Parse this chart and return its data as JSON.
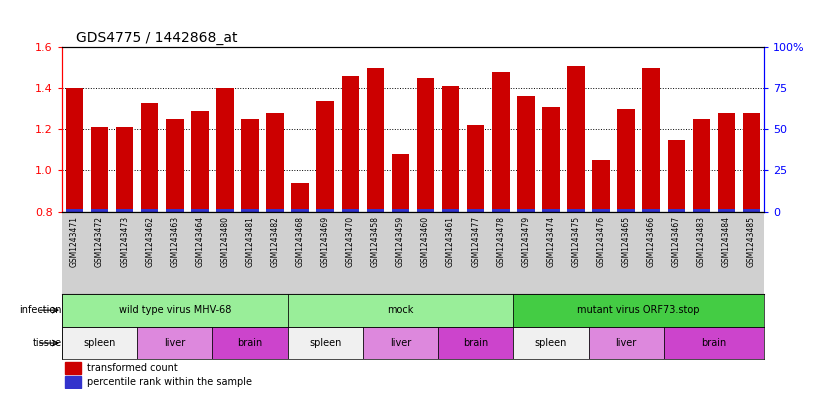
{
  "title": "GDS4775 / 1442868_at",
  "samples": [
    "GSM1243471",
    "GSM1243472",
    "GSM1243473",
    "GSM1243462",
    "GSM1243463",
    "GSM1243464",
    "GSM1243480",
    "GSM1243481",
    "GSM1243482",
    "GSM1243468",
    "GSM1243469",
    "GSM1243470",
    "GSM1243458",
    "GSM1243459",
    "GSM1243460",
    "GSM1243461",
    "GSM1243477",
    "GSM1243478",
    "GSM1243479",
    "GSM1243474",
    "GSM1243475",
    "GSM1243476",
    "GSM1243465",
    "GSM1243466",
    "GSM1243467",
    "GSM1243483",
    "GSM1243484",
    "GSM1243485"
  ],
  "red_values": [
    1.4,
    1.21,
    1.21,
    1.33,
    1.25,
    1.29,
    1.4,
    1.25,
    1.28,
    0.94,
    1.34,
    1.46,
    1.5,
    1.08,
    1.45,
    1.41,
    1.22,
    1.48,
    1.36,
    1.31,
    1.51,
    1.05,
    1.3,
    1.5,
    1.15,
    1.25,
    1.28,
    1.28
  ],
  "ymin": 0.8,
  "ymax": 1.6,
  "yticks_left": [
    0.8,
    1.0,
    1.2,
    1.4,
    1.6
  ],
  "yticks_right_vals": [
    0,
    25,
    50,
    75,
    100
  ],
  "yticks_right_labels": [
    "0",
    "25",
    "50",
    "75",
    "100%"
  ],
  "bar_color": "#cc0000",
  "blue_color": "#3333cc",
  "bg_color": "#d0d0d0",
  "infection_groups": [
    {
      "label": "wild type virus MHV-68",
      "start": 0,
      "end": 9,
      "color": "#99ee99"
    },
    {
      "label": "mock",
      "start": 9,
      "end": 18,
      "color": "#99ee99"
    },
    {
      "label": "mutant virus ORF73.stop",
      "start": 18,
      "end": 28,
      "color": "#44cc44"
    }
  ],
  "tissue_groups": [
    {
      "label": "spleen",
      "start": 0,
      "end": 3,
      "color": "#f0f0f0"
    },
    {
      "label": "liver",
      "start": 3,
      "end": 6,
      "color": "#dd88dd"
    },
    {
      "label": "brain",
      "start": 6,
      "end": 9,
      "color": "#cc44cc"
    },
    {
      "label": "spleen",
      "start": 9,
      "end": 12,
      "color": "#f0f0f0"
    },
    {
      "label": "liver",
      "start": 12,
      "end": 15,
      "color": "#dd88dd"
    },
    {
      "label": "brain",
      "start": 15,
      "end": 18,
      "color": "#cc44cc"
    },
    {
      "label": "spleen",
      "start": 18,
      "end": 21,
      "color": "#f0f0f0"
    },
    {
      "label": "liver",
      "start": 21,
      "end": 24,
      "color": "#dd88dd"
    },
    {
      "label": "brain",
      "start": 24,
      "end": 28,
      "color": "#cc44cc"
    }
  ],
  "label_fontsize": 7,
  "tick_fontsize": 5.5,
  "title_fontsize": 10
}
